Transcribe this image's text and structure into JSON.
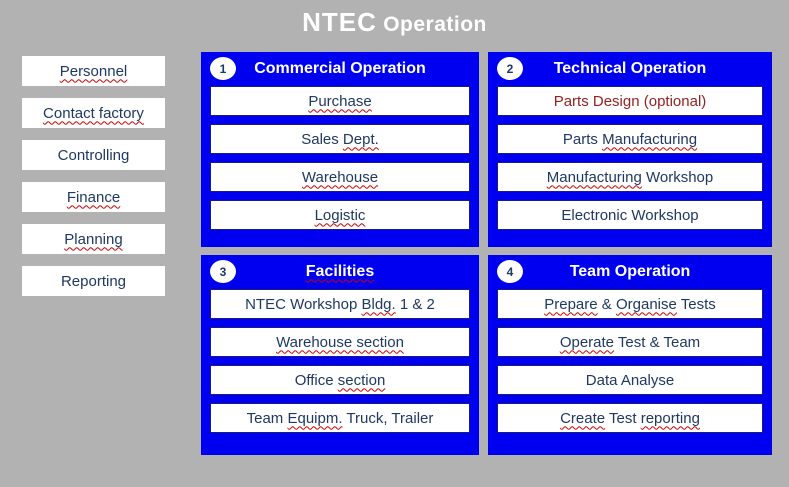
{
  "header": {
    "brand": "NTEC",
    "title_rest": " Operation"
  },
  "sidebar": {
    "items": [
      {
        "name": "personnel",
        "segments": [
          {
            "t": "Personnel",
            "sp": true
          }
        ]
      },
      {
        "name": "contact-factory",
        "segments": [
          {
            "t": "Contact factory",
            "sp": true
          }
        ]
      },
      {
        "name": "controlling",
        "segments": [
          {
            "t": "Controlling",
            "sp": false
          }
        ]
      },
      {
        "name": "finance",
        "segments": [
          {
            "t": "Finance",
            "sp": true
          }
        ]
      },
      {
        "name": "planning",
        "segments": [
          {
            "t": "Planning",
            "sp": true
          }
        ]
      },
      {
        "name": "reporting",
        "segments": [
          {
            "t": "Reporting",
            "sp": false
          }
        ]
      }
    ]
  },
  "panels": [
    {
      "number": "1",
      "title": "Commercial Operation",
      "title_misspelled": false,
      "items": [
        {
          "segments": [
            {
              "t": "Purchase",
              "sp": true
            }
          ]
        },
        {
          "segments": [
            {
              "t": "Sales ",
              "sp": false
            },
            {
              "t": "Dept.",
              "sp": true
            }
          ]
        },
        {
          "segments": [
            {
              "t": "Warehouse",
              "sp": true
            }
          ]
        },
        {
          "segments": [
            {
              "t": "Logistic",
              "sp": true
            }
          ]
        }
      ]
    },
    {
      "number": "2",
      "title": "Technical Operation",
      "title_misspelled": false,
      "items": [
        {
          "red": true,
          "segments": [
            {
              "t": "Parts Design (optional)",
              "sp": false
            }
          ]
        },
        {
          "segments": [
            {
              "t": "Parts ",
              "sp": false
            },
            {
              "t": "Manufacturing",
              "sp": true
            }
          ]
        },
        {
          "segments": [
            {
              "t": "Manufacturing",
              "sp": true
            },
            {
              "t": " Workshop",
              "sp": false
            }
          ]
        },
        {
          "segments": [
            {
              "t": "Electronic Workshop",
              "sp": false
            }
          ]
        }
      ]
    },
    {
      "number": "3",
      "title": "Facilities",
      "title_misspelled": true,
      "items": [
        {
          "segments": [
            {
              "t": "NTEC Workshop ",
              "sp": false
            },
            {
              "t": "Bldg.",
              "sp": true
            },
            {
              "t": " 1 & 2",
              "sp": false
            }
          ]
        },
        {
          "segments": [
            {
              "t": "Warehouse section",
              "sp": true
            }
          ]
        },
        {
          "segments": [
            {
              "t": "Office ",
              "sp": false
            },
            {
              "t": "section",
              "sp": true
            }
          ]
        },
        {
          "segments": [
            {
              "t": "Team ",
              "sp": false
            },
            {
              "t": "Equipm.",
              "sp": true
            },
            {
              "t": " Truck, Trailer",
              "sp": false
            }
          ]
        }
      ]
    },
    {
      "number": "4",
      "title": "Team Operation",
      "title_misspelled": false,
      "items": [
        {
          "segments": [
            {
              "t": "Prepare",
              "sp": true
            },
            {
              "t": " & ",
              "sp": false
            },
            {
              "t": "Organise",
              "sp": true
            },
            {
              "t": " Tests",
              "sp": false
            }
          ]
        },
        {
          "segments": [
            {
              "t": "Operate",
              "sp": true
            },
            {
              "t": " Test & Team",
              "sp": false
            }
          ]
        },
        {
          "segments": [
            {
              "t": "Data Analyse",
              "sp": false
            }
          ]
        },
        {
          "segments": [
            {
              "t": "Create",
              "sp": true
            },
            {
              "t": " Test ",
              "sp": false
            },
            {
              "t": "reporting",
              "sp": true
            }
          ]
        }
      ]
    }
  ],
  "colors": {
    "background_gray": "#b2b2b2",
    "panel_blue": "#0000f0",
    "text_navy": "#1f3864",
    "optional_red": "#962121",
    "squiggle_red": "#cc0000",
    "box_white": "#ffffff",
    "title_white": "#ffffff"
  }
}
